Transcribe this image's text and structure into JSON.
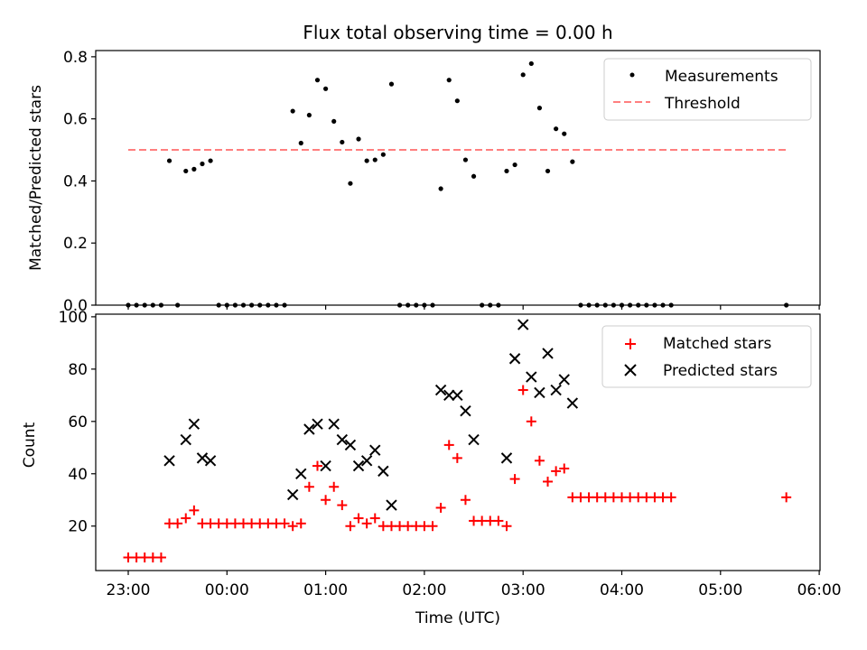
{
  "title": "Flux total observing time = 0.00 h",
  "xlabel": "Time (UTC)",
  "x_ticks": [
    "23:00",
    "00:00",
    "01:00",
    "02:00",
    "03:00",
    "04:00",
    "05:00",
    "06:00"
  ],
  "colors": {
    "matched": "#ff0000",
    "predicted": "#000000",
    "threshold": "#ff7f7f",
    "measurements": "#000000"
  },
  "chart_data": [
    {
      "type": "scatter",
      "ylabel": "Matched/Predicted stars",
      "ylim": [
        0,
        0.82
      ],
      "y_ticks": [
        "0.0",
        "0.2",
        "0.4",
        "0.6",
        "0.8"
      ],
      "legend_position": "top-right",
      "series": [
        {
          "name": "Measurements",
          "points": [
            [
              "23:00",
              0
            ],
            [
              "23:05",
              0
            ],
            [
              "23:10",
              0
            ],
            [
              "23:15",
              0
            ],
            [
              "23:20",
              0
            ],
            [
              "23:25",
              0.465
            ],
            [
              "23:30",
              0
            ],
            [
              "23:35",
              0.432
            ],
            [
              "23:40",
              0.438
            ],
            [
              "23:45",
              0.455
            ],
            [
              "23:50",
              0.465
            ],
            [
              "23:55",
              0
            ],
            [
              "00:00",
              0
            ],
            [
              "00:05",
              0
            ],
            [
              "00:10",
              0
            ],
            [
              "00:15",
              0
            ],
            [
              "00:20",
              0
            ],
            [
              "00:25",
              0
            ],
            [
              "00:30",
              0
            ],
            [
              "00:35",
              0
            ],
            [
              "00:40",
              0.625
            ],
            [
              "00:45",
              0.522
            ],
            [
              "00:50",
              0.612
            ],
            [
              "00:55",
              0.725
            ],
            [
              "01:00",
              0.697
            ],
            [
              "01:05",
              0.592
            ],
            [
              "01:10",
              0.525
            ],
            [
              "01:15",
              0.392
            ],
            [
              "01:20",
              0.535
            ],
            [
              "01:25",
              0.465
            ],
            [
              "01:30",
              0.468
            ],
            [
              "01:35",
              0.485
            ],
            [
              "01:40",
              0.712
            ],
            [
              "01:45",
              0
            ],
            [
              "01:50",
              0
            ],
            [
              "01:55",
              0
            ],
            [
              "02:00",
              0
            ],
            [
              "02:05",
              0
            ],
            [
              "02:10",
              0.375
            ],
            [
              "02:15",
              0.725
            ],
            [
              "02:20",
              0.658
            ],
            [
              "02:25",
              0.468
            ],
            [
              "02:30",
              0.415
            ],
            [
              "02:35",
              0
            ],
            [
              "02:40",
              0
            ],
            [
              "02:45",
              0
            ],
            [
              "02:50",
              0.432
            ],
            [
              "02:55",
              0.452
            ],
            [
              "03:00",
              0.742
            ],
            [
              "03:05",
              0.778
            ],
            [
              "03:10",
              0.635
            ],
            [
              "03:15",
              0.432
            ],
            [
              "03:20",
              0.568
            ],
            [
              "03:25",
              0.552
            ],
            [
              "03:30",
              0.462
            ],
            [
              "03:35",
              0
            ],
            [
              "03:40",
              0
            ],
            [
              "03:45",
              0
            ],
            [
              "03:50",
              0
            ],
            [
              "03:55",
              0
            ],
            [
              "04:00",
              0
            ],
            [
              "04:05",
              0
            ],
            [
              "04:10",
              0
            ],
            [
              "04:15",
              0
            ],
            [
              "04:20",
              0
            ],
            [
              "04:25",
              0
            ],
            [
              "04:30",
              0
            ],
            [
              "05:40",
              0
            ]
          ]
        },
        {
          "name": "Threshold",
          "points": [
            [
              "23:00",
              0.5
            ],
            [
              "05:40",
              0.5
            ]
          ]
        }
      ]
    },
    {
      "type": "scatter",
      "ylabel": "Count",
      "ylim": [
        3,
        101
      ],
      "y_ticks": [
        "20",
        "40",
        "60",
        "80",
        "100"
      ],
      "legend_position": "top-right",
      "series": [
        {
          "name": "Matched stars",
          "points": [
            [
              "23:00",
              8
            ],
            [
              "23:05",
              8
            ],
            [
              "23:10",
              8
            ],
            [
              "23:15",
              8
            ],
            [
              "23:20",
              8
            ],
            [
              "23:25",
              21
            ],
            [
              "23:30",
              21
            ],
            [
              "23:35",
              23
            ],
            [
              "23:40",
              26
            ],
            [
              "23:45",
              21
            ],
            [
              "23:50",
              21
            ],
            [
              "23:55",
              21
            ],
            [
              "00:00",
              21
            ],
            [
              "00:05",
              21
            ],
            [
              "00:10",
              21
            ],
            [
              "00:15",
              21
            ],
            [
              "00:20",
              21
            ],
            [
              "00:25",
              21
            ],
            [
              "00:30",
              21
            ],
            [
              "00:35",
              21
            ],
            [
              "00:40",
              20
            ],
            [
              "00:45",
              21
            ],
            [
              "00:50",
              35
            ],
            [
              "00:55",
              43
            ],
            [
              "01:00",
              30
            ],
            [
              "01:05",
              35
            ],
            [
              "01:10",
              28
            ],
            [
              "01:15",
              20
            ],
            [
              "01:20",
              23
            ],
            [
              "01:25",
              21
            ],
            [
              "01:30",
              23
            ],
            [
              "01:35",
              20
            ],
            [
              "01:40",
              20
            ],
            [
              "01:45",
              20
            ],
            [
              "01:50",
              20
            ],
            [
              "01:55",
              20
            ],
            [
              "02:00",
              20
            ],
            [
              "02:05",
              20
            ],
            [
              "02:10",
              27
            ],
            [
              "02:15",
              51
            ],
            [
              "02:20",
              46
            ],
            [
              "02:25",
              30
            ],
            [
              "02:30",
              22
            ],
            [
              "02:35",
              22
            ],
            [
              "02:40",
              22
            ],
            [
              "02:45",
              22
            ],
            [
              "02:50",
              20
            ],
            [
              "02:55",
              38
            ],
            [
              "03:00",
              72
            ],
            [
              "03:05",
              60
            ],
            [
              "03:10",
              45
            ],
            [
              "03:15",
              37
            ],
            [
              "03:20",
              41
            ],
            [
              "03:25",
              42
            ],
            [
              "03:30",
              31
            ],
            [
              "03:35",
              31
            ],
            [
              "03:40",
              31
            ],
            [
              "03:45",
              31
            ],
            [
              "03:50",
              31
            ],
            [
              "03:55",
              31
            ],
            [
              "04:00",
              31
            ],
            [
              "04:05",
              31
            ],
            [
              "04:10",
              31
            ],
            [
              "04:15",
              31
            ],
            [
              "04:20",
              31
            ],
            [
              "04:25",
              31
            ],
            [
              "04:30",
              31
            ],
            [
              "05:40",
              31
            ]
          ]
        },
        {
          "name": "Predicted stars",
          "points": [
            [
              "23:25",
              45
            ],
            [
              "23:35",
              53
            ],
            [
              "23:40",
              59
            ],
            [
              "23:45",
              46
            ],
            [
              "23:50",
              45
            ],
            [
              "00:40",
              32
            ],
            [
              "00:45",
              40
            ],
            [
              "00:50",
              57
            ],
            [
              "00:55",
              59
            ],
            [
              "01:00",
              43
            ],
            [
              "01:05",
              59
            ],
            [
              "01:10",
              53
            ],
            [
              "01:15",
              51
            ],
            [
              "01:20",
              43
            ],
            [
              "01:25",
              45
            ],
            [
              "01:30",
              49
            ],
            [
              "01:35",
              41
            ],
            [
              "01:40",
              28
            ],
            [
              "02:10",
              72
            ],
            [
              "02:15",
              70
            ],
            [
              "02:20",
              70
            ],
            [
              "02:25",
              64
            ],
            [
              "02:30",
              53
            ],
            [
              "02:50",
              46
            ],
            [
              "02:55",
              84
            ],
            [
              "03:00",
              97
            ],
            [
              "03:05",
              77
            ],
            [
              "03:10",
              71
            ],
            [
              "03:15",
              86
            ],
            [
              "03:20",
              72
            ],
            [
              "03:25",
              76
            ],
            [
              "03:30",
              67
            ]
          ]
        }
      ]
    }
  ]
}
